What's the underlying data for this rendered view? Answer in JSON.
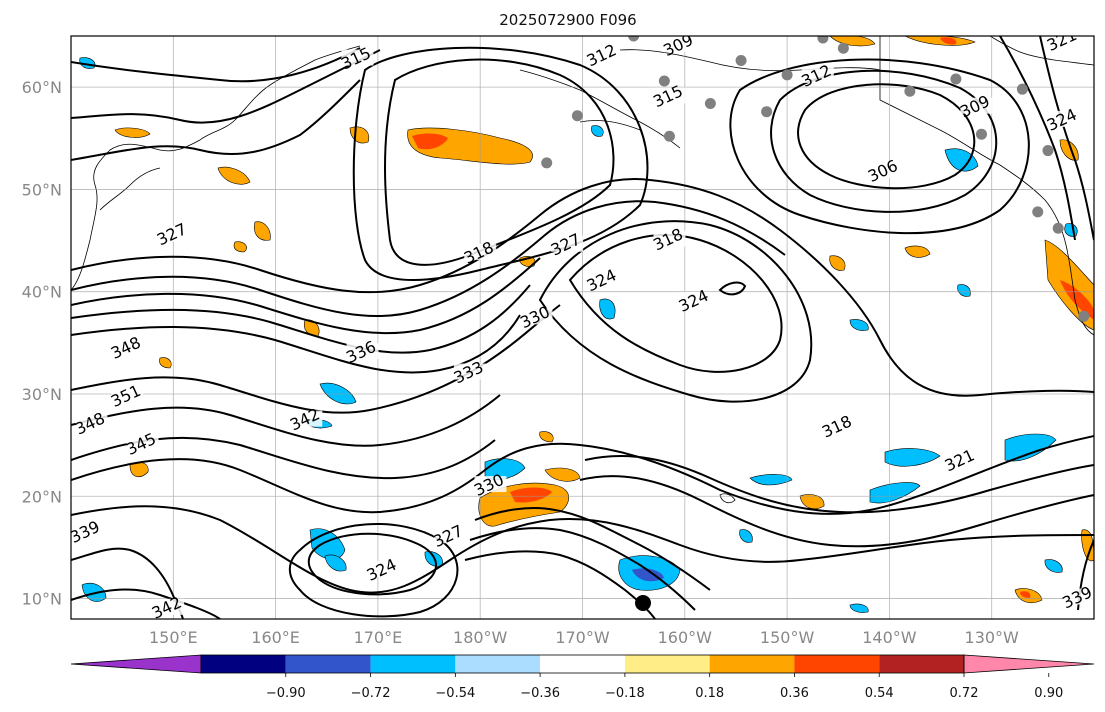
{
  "title": "2025072900 F096",
  "map": {
    "lon_range": [
      140,
      240
    ],
    "lat_range": [
      8,
      65
    ],
    "lon_ticks": [
      {
        "lon": 150,
        "label": "150°E"
      },
      {
        "lon": 160,
        "label": "160°E"
      },
      {
        "lon": 170,
        "label": "170°E"
      },
      {
        "lon": 180,
        "label": "180°W"
      },
      {
        "lon": 190,
        "label": "170°W"
      },
      {
        "lon": 200,
        "label": "160°W"
      },
      {
        "lon": 210,
        "label": "150°W"
      },
      {
        "lon": 220,
        "label": "140°W"
      },
      {
        "lon": 230,
        "label": "130°W"
      }
    ],
    "lat_ticks": [
      {
        "lat": 10,
        "label": "10°N"
      },
      {
        "lat": 20,
        "label": "20°N"
      },
      {
        "lat": 30,
        "label": "30°N"
      },
      {
        "lat": 40,
        "label": "40°N"
      },
      {
        "lat": 50,
        "label": "50°N"
      },
      {
        "lat": 60,
        "label": "60°N"
      }
    ],
    "grid": true
  },
  "colorbar": {
    "colors": [
      "#9933cc",
      "#000080",
      "#3355cc",
      "#00bfff",
      "#aaddff",
      "#ffffff",
      "#ffee88",
      "#ffa500",
      "#ff4500",
      "#b22222",
      "#ff88aa"
    ],
    "labels": [
      "−0.90",
      "−0.72",
      "−0.54",
      "−0.36",
      "−0.18",
      "0.18",
      "0.36",
      "0.54",
      "0.72",
      "0.90"
    ],
    "extend": "both"
  },
  "contour_labels": [
    {
      "text": "315",
      "lon": 168,
      "lat": 62.5
    },
    {
      "text": "312",
      "lon": 192,
      "lat": 62.8
    },
    {
      "text": "309",
      "lon": 199.5,
      "lat": 63.8
    },
    {
      "text": "315",
      "lon": 198.5,
      "lat": 58.8
    },
    {
      "text": "312",
      "lon": 213,
      "lat": 60.8
    },
    {
      "text": "309",
      "lon": 228.5,
      "lat": 57.8
    },
    {
      "text": "321",
      "lon": 237,
      "lat": 64.3
    },
    {
      "text": "324",
      "lon": 237,
      "lat": 56.5
    },
    {
      "text": "306",
      "lon": 219.5,
      "lat": 51.5
    },
    {
      "text": "327",
      "lon": 150,
      "lat": 45.3
    },
    {
      "text": "318",
      "lon": 180,
      "lat": 43.5
    },
    {
      "text": "327",
      "lon": 188.5,
      "lat": 44.3
    },
    {
      "text": "324",
      "lon": 192,
      "lat": 40.8
    },
    {
      "text": "318",
      "lon": 198.5,
      "lat": 44.8
    },
    {
      "text": "324",
      "lon": 201,
      "lat": 38.8
    },
    {
      "text": "330",
      "lon": 185.5,
      "lat": 37.2
    },
    {
      "text": "348",
      "lon": 145.5,
      "lat": 34.2
    },
    {
      "text": "336",
      "lon": 168.5,
      "lat": 33.8
    },
    {
      "text": "333",
      "lon": 179,
      "lat": 31.8
    },
    {
      "text": "351",
      "lon": 145.5,
      "lat": 29.5
    },
    {
      "text": "348",
      "lon": 142,
      "lat": 26.8
    },
    {
      "text": "342",
      "lon": 163,
      "lat": 27.2
    },
    {
      "text": "345",
      "lon": 147,
      "lat": 24.8
    },
    {
      "text": "318",
      "lon": 215,
      "lat": 26.5
    },
    {
      "text": "321",
      "lon": 227,
      "lat": 23.2
    },
    {
      "text": "330",
      "lon": 181,
      "lat": 20.8
    },
    {
      "text": "327",
      "lon": 177,
      "lat": 15.8
    },
    {
      "text": "324",
      "lon": 170.5,
      "lat": 12.5
    },
    {
      "text": "339",
      "lon": 141.5,
      "lat": 16.2
    },
    {
      "text": "342",
      "lon": 149.5,
      "lat": 8.8
    },
    {
      "text": "339",
      "lon": 238.5,
      "lat": 9.8
    }
  ],
  "stations": [
    {
      "lon": 195,
      "lat": 65
    },
    {
      "lon": 198,
      "lat": 60.6
    },
    {
      "lon": 205.5,
      "lat": 62.6
    },
    {
      "lon": 202.5,
      "lat": 58.4
    },
    {
      "lon": 208,
      "lat": 57.6
    },
    {
      "lon": 210,
      "lat": 61.2
    },
    {
      "lon": 213.5,
      "lat": 64.8
    },
    {
      "lon": 215.5,
      "lat": 63.8
    },
    {
      "lon": 222,
      "lat": 59.6
    },
    {
      "lon": 226.5,
      "lat": 60.8
    },
    {
      "lon": 233,
      "lat": 59.8
    },
    {
      "lon": 189.5,
      "lat": 57.2
    },
    {
      "lon": 198.5,
      "lat": 55.2
    },
    {
      "lon": 186.5,
      "lat": 52.6
    },
    {
      "lon": 235.5,
      "lat": 53.8
    },
    {
      "lon": 234.5,
      "lat": 47.8
    },
    {
      "lon": 236.5,
      "lat": 46.2
    },
    {
      "lon": 239,
      "lat": 37.6
    },
    {
      "lon": 229,
      "lat": 55.4
    }
  ]
}
